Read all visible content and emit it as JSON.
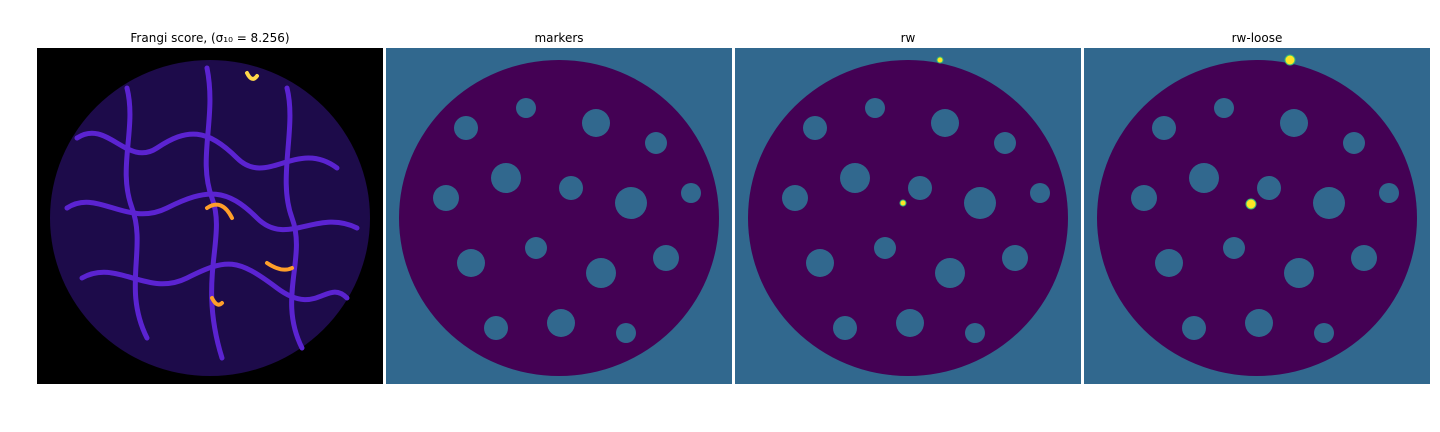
{
  "panels": [
    {
      "title": "Frangi score, (σ₁₀ = 8.256)",
      "background": "#000000",
      "blob_fill": "#1d0b4a",
      "ridge_color": "#5b23d1",
      "highlight_color": "#ff9f2a",
      "hot_color": "#ffd84a"
    },
    {
      "title": "markers",
      "background": "#31688e",
      "blob_fill": "#440154",
      "highlight_color": "#35b779",
      "hot_color": "#fde725"
    },
    {
      "title": "rw",
      "background": "#31688e",
      "blob_fill": "#440154",
      "highlight_color": "#35b779",
      "hot_color": "#fde725"
    },
    {
      "title": "rw-loose",
      "background": "#31688e",
      "blob_fill": "#440154",
      "highlight_color": "#35b779",
      "hot_color": "#fde725"
    }
  ]
}
